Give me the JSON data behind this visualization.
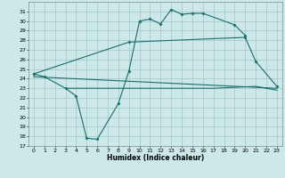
{
  "xlabel": "Humidex (Indice chaleur)",
  "xlim": [
    -0.5,
    23.5
  ],
  "ylim": [
    17,
    32
  ],
  "xticks": [
    0,
    1,
    2,
    3,
    4,
    5,
    6,
    7,
    8,
    9,
    10,
    11,
    12,
    13,
    14,
    15,
    16,
    17,
    18,
    19,
    20,
    21,
    22,
    23
  ],
  "yticks": [
    17,
    18,
    19,
    20,
    21,
    22,
    23,
    24,
    25,
    26,
    27,
    28,
    29,
    30,
    31
  ],
  "background_color": "#cce8e8",
  "grid_color": "#aacccc",
  "line_color": "#1a6e6e",
  "line1_x": [
    0,
    1,
    3,
    4,
    5,
    6,
    8,
    9,
    10,
    11,
    12,
    13,
    14,
    15,
    16,
    19,
    20
  ],
  "line1_y": [
    24.5,
    24.2,
    23.0,
    22.2,
    17.8,
    17.7,
    21.4,
    24.8,
    30.0,
    30.2,
    29.7,
    31.2,
    30.7,
    30.8,
    30.8,
    29.6,
    28.5
  ],
  "line2_x": [
    0,
    9,
    20,
    21,
    23
  ],
  "line2_y": [
    24.5,
    27.8,
    28.3,
    25.8,
    23.2
  ],
  "line3_x": [
    0,
    23
  ],
  "line3_y": [
    24.2,
    23.0
  ],
  "line4_x": [
    3,
    17,
    21,
    23
  ],
  "line4_y": [
    23.0,
    23.0,
    23.2,
    22.8
  ]
}
